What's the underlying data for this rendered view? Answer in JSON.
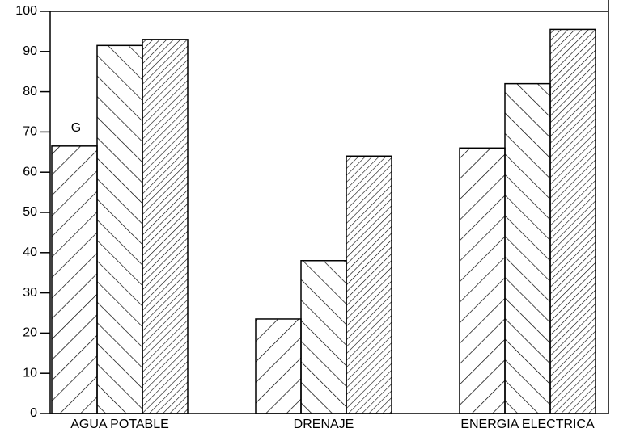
{
  "chart_data": {
    "type": "bar",
    "categories": [
      "AGUA POTABLE",
      "DRENAJE",
      "ENERGIA ELECTRICA"
    ],
    "series": [
      {
        "color": "#000000",
        "hatch": "forward",
        "values": [
          66.5,
          23.5,
          66
        ]
      },
      {
        "color": "#000000",
        "hatch": "backward",
        "values": [
          91.5,
          38,
          82
        ]
      },
      {
        "color": "#000000",
        "hatch": "forward-dense",
        "values": [
          93,
          64,
          95.5
        ]
      }
    ],
    "annotations": [
      {
        "text": "G",
        "series": 0,
        "category": 0
      }
    ],
    "ylim": [
      0,
      100
    ],
    "yticks": [
      0,
      10,
      20,
      30,
      40,
      50,
      60,
      70,
      80,
      90,
      100
    ],
    "grid": false
  }
}
